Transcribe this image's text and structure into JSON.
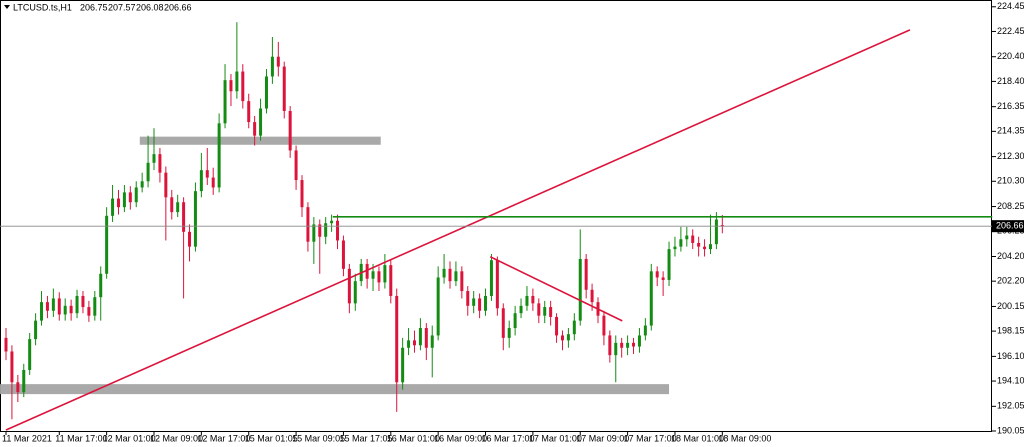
{
  "chart_data": {
    "type": "candlestick",
    "title": "LTCUSD.ts,H1",
    "categories": [
      "11 Mar 2021",
      null,
      null,
      null,
      null,
      null,
      null,
      null,
      null,
      "11 Mar 17:00",
      null,
      null,
      null,
      null,
      null,
      null,
      null,
      "12 Mar 01:00",
      null,
      null,
      null,
      null,
      null,
      null,
      null,
      "12 Mar 09:00",
      null,
      null,
      null,
      null,
      null,
      null,
      null,
      "12 Mar 17:00",
      null,
      null,
      null,
      null,
      null,
      null,
      null,
      "15 Mar 01:05",
      null,
      null,
      null,
      null,
      null,
      null,
      null,
      "15 Mar 09:05",
      null,
      null,
      null,
      null,
      null,
      null,
      null,
      "15 Mar 17:05",
      null,
      null,
      null,
      null,
      null,
      null,
      null,
      "16 Mar 01:00",
      null,
      null,
      null,
      null,
      null,
      null,
      null,
      "16 Mar 09:00",
      null,
      null,
      null,
      null,
      null,
      null,
      null,
      "16 Mar 17:00",
      null,
      null,
      null,
      null,
      null,
      null,
      null,
      "17 Mar 01:00",
      null,
      null,
      null,
      null,
      null,
      null,
      null,
      "17 Mar 09:00",
      null,
      null,
      null,
      null,
      null,
      null,
      null,
      "17 Mar 17:00",
      null,
      null,
      null,
      null,
      null,
      null,
      null,
      "18 Mar 01:00",
      null,
      null,
      null,
      null,
      null,
      null,
      null,
      "18 Mar 09:00"
    ],
    "open": [
      197.6,
      196.5,
      194.0,
      193.2,
      195.0,
      197.5,
      199.0,
      200.5,
      199.8,
      200.8,
      199.5,
      200.2,
      199.6,
      201.0,
      200.1,
      199.4,
      200.9,
      202.8,
      207.5,
      208.9,
      208.2,
      209.4,
      208.6,
      209.8,
      210.3,
      211.8,
      212.5,
      211.0,
      209.0,
      207.8,
      208.6,
      206.2,
      205.0,
      209.5,
      211.2,
      210.6,
      209.8,
      215.0,
      218.5,
      217.6,
      219.2,
      216.8,
      215.1,
      214.0,
      216.2,
      218.8,
      220.4,
      219.6,
      216.0,
      212.8,
      210.4,
      208.2,
      205.4,
      206.8,
      205.8,
      206.9,
      207.1,
      205.5,
      203.2,
      200.4,
      202.2,
      203.6,
      202.4,
      203.0,
      202.1,
      203.5,
      201.0,
      194.0,
      196.8,
      197.4,
      197.0,
      198.4,
      196.8,
      197.8,
      202.5,
      203.2,
      202.2,
      203.0,
      201.4,
      200.2,
      200.8,
      199.8,
      201.0,
      203.9,
      200.0,
      197.6,
      198.4,
      199.6,
      200.2,
      201.0,
      200.4,
      199.4,
      200.1,
      199.3,
      197.8,
      197.4,
      197.9,
      199.0,
      204.0,
      201.5,
      200.5,
      199.4,
      197.8,
      196.2,
      197.2,
      196.8,
      197.2,
      196.9,
      197.8,
      198.6,
      203.0,
      202.5,
      202.3,
      204.8,
      205.0,
      205.6,
      205.9,
      205.3,
      205.0,
      204.8,
      205.2,
      206.75
    ],
    "high": [
      198.4,
      197.0,
      194.6,
      195.5,
      198.0,
      199.6,
      201.4,
      201.0,
      201.6,
      201.3,
      200.8,
      200.7,
      201.5,
      201.4,
      200.6,
      201.4,
      203.4,
      208.2,
      210.0,
      209.6,
      210.0,
      209.9,
      210.3,
      211.0,
      214.0,
      214.6,
      213.0,
      211.5,
      209.6,
      209.2,
      209.0,
      206.8,
      210.2,
      212.6,
      213.0,
      211.4,
      215.8,
      219.8,
      219.0,
      223.2,
      219.8,
      217.4,
      215.6,
      217.0,
      219.4,
      222.0,
      221.6,
      220.0,
      216.4,
      213.2,
      210.8,
      208.6,
      207.4,
      207.2,
      207.4,
      207.6,
      207.6,
      205.9,
      203.6,
      202.8,
      204.0,
      204.0,
      203.6,
      203.4,
      204.4,
      204.0,
      201.6,
      197.6,
      198.4,
      198.2,
      199.2,
      198.8,
      198.6,
      203.4,
      204.4,
      203.8,
      203.8,
      203.4,
      201.8,
      201.4,
      201.2,
      201.6,
      204.4,
      204.2,
      200.4,
      199.0,
      200.2,
      200.8,
      201.8,
      201.6,
      200.8,
      200.6,
      200.6,
      199.6,
      198.2,
      198.4,
      199.6,
      206.4,
      204.4,
      202.0,
      200.9,
      199.8,
      198.2,
      197.8,
      197.6,
      197.8,
      197.6,
      198.4,
      199.2,
      203.6,
      203.4,
      203.0,
      205.4,
      205.8,
      206.6,
      206.6,
      206.4,
      205.8,
      205.6,
      207.6,
      207.8,
      207.57
    ],
    "low": [
      195.8,
      191.0,
      192.4,
      192.8,
      194.6,
      197.0,
      198.6,
      199.2,
      199.3,
      199.0,
      199.0,
      199.0,
      199.2,
      199.6,
      198.9,
      199.0,
      199.0,
      202.4,
      207.0,
      207.6,
      207.8,
      208.0,
      208.2,
      209.4,
      209.8,
      211.2,
      210.2,
      205.5,
      207.2,
      207.4,
      200.8,
      203.8,
      204.6,
      209.0,
      210.0,
      209.2,
      209.4,
      214.6,
      216.4,
      217.0,
      216.2,
      214.6,
      213.2,
      213.6,
      215.8,
      218.2,
      218.8,
      215.4,
      212.2,
      209.6,
      207.4,
      204.6,
      203.6,
      202.8,
      205.2,
      206.2,
      204.8,
      202.6,
      199.6,
      199.8,
      201.8,
      201.6,
      201.4,
      201.4,
      201.6,
      200.4,
      191.6,
      193.4,
      196.2,
      196.4,
      196.6,
      195.8,
      194.4,
      197.4,
      202.0,
      201.6,
      201.8,
      200.8,
      199.4,
      199.6,
      199.2,
      199.4,
      200.6,
      199.4,
      196.6,
      196.8,
      197.8,
      199.2,
      199.8,
      199.8,
      198.8,
      198.8,
      198.6,
      197.2,
      196.6,
      196.8,
      197.4,
      198.6,
      200.8,
      199.8,
      198.8,
      197.0,
      195.6,
      194.0,
      196.0,
      196.2,
      196.3,
      196.4,
      197.4,
      198.2,
      201.8,
      201.0,
      201.8,
      204.2,
      204.6,
      205.0,
      204.8,
      204.2,
      204.2,
      204.4,
      204.8,
      206.08
    ],
    "close": [
      196.5,
      194.0,
      193.2,
      195.0,
      197.5,
      199.0,
      200.5,
      199.8,
      200.8,
      199.5,
      200.2,
      199.6,
      201.0,
      200.1,
      199.4,
      200.9,
      202.8,
      207.5,
      208.9,
      208.2,
      209.4,
      208.6,
      209.8,
      210.3,
      211.8,
      212.5,
      211.0,
      209.0,
      207.8,
      208.6,
      206.2,
      205.0,
      209.5,
      211.2,
      210.6,
      209.8,
      215.0,
      218.5,
      217.6,
      219.2,
      216.8,
      215.1,
      214.0,
      216.2,
      218.8,
      220.4,
      219.6,
      216.0,
      212.8,
      210.4,
      208.2,
      205.4,
      206.8,
      205.8,
      206.9,
      207.1,
      205.5,
      203.2,
      200.4,
      202.2,
      203.6,
      202.4,
      203.0,
      202.1,
      203.5,
      201.0,
      194.0,
      196.8,
      197.4,
      197.0,
      198.4,
      196.8,
      197.8,
      202.5,
      203.2,
      202.2,
      203.0,
      201.4,
      200.2,
      200.8,
      199.8,
      201.0,
      203.9,
      200.0,
      197.6,
      198.4,
      199.6,
      200.2,
      201.0,
      200.4,
      199.4,
      200.1,
      199.3,
      197.8,
      197.4,
      197.9,
      199.0,
      204.0,
      201.5,
      200.5,
      199.4,
      197.8,
      196.2,
      197.2,
      196.8,
      197.2,
      196.9,
      197.8,
      198.6,
      203.0,
      202.5,
      202.3,
      204.8,
      205.0,
      205.6,
      205.9,
      205.3,
      205.0,
      204.8,
      205.2,
      207.2,
      206.66
    ],
    "up_color": "#148c14",
    "down_color": "#dc143c",
    "ylim": [
      190.05,
      225.0
    ],
    "yticks": [
      224.45,
      222.45,
      {
        "value": 220.4,
        "label": "220.40"
      },
      {
        "value": 218.4,
        "label": "218.40"
      },
      216.35,
      214.35,
      {
        "value": 212.3,
        "label": "212.30"
      },
      {
        "value": 210.3,
        "label": "210.30"
      },
      208.25,
      206.25,
      {
        "value": 204.2,
        "label": "204.20"
      },
      {
        "value": 202.2,
        "label": "202.20"
      },
      200.15,
      198.15,
      {
        "value": 196.1,
        "label": "196.10"
      },
      {
        "value": 194.1,
        "label": "194.10"
      },
      192.05,
      190.05
    ],
    "grid": false,
    "overlays": [
      {
        "kind": "zone",
        "color": "#a9a9a9",
        "x": [
          22.6,
          63.3
        ],
        "y": [
          213.92,
          213.26
        ]
      },
      {
        "kind": "zone",
        "color": "#a9a9a9",
        "x": [
          -1,
          112
        ],
        "y": [
          193.85,
          193.04
        ]
      },
      {
        "kind": "segment",
        "color": "#dc143c",
        "x": [
          0,
          152.7
        ],
        "y": [
          190.13,
          222.58
        ]
      },
      {
        "kind": "segment",
        "color": "#dc143c",
        "x": [
          81.8,
          104.1
        ],
        "y": [
          204.18,
          198.98
        ]
      },
      {
        "kind": "segment",
        "color": "#148c14",
        "x": [
          55.2,
          166.6
        ],
        "y": [
          207.42,
          207.42
        ]
      }
    ]
  }
}
